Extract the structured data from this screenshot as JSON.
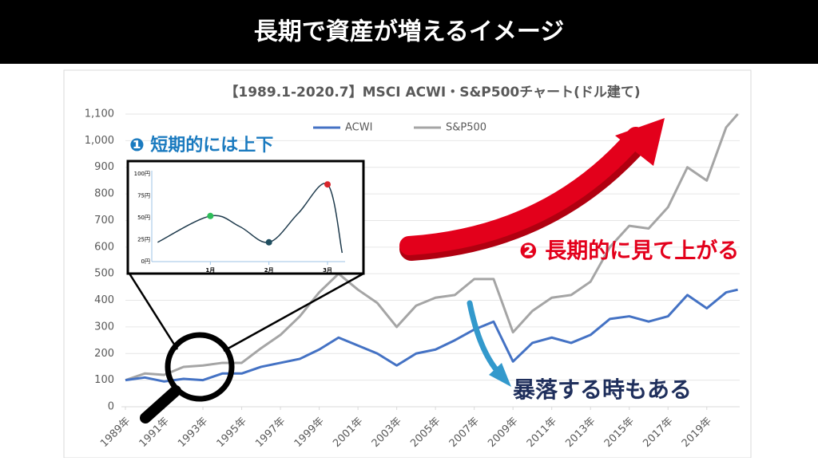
{
  "header": {
    "title": "長期で資産が増えるイメージ"
  },
  "annotations": {
    "short_term": "❶ 短期的には上下",
    "long_term": "❷ 長期的に見て上がる",
    "crash": "暴落する時もある"
  },
  "chart_data": [
    {
      "type": "line",
      "title": "【1989.1-2020.7】MSCI ACWI・S&P500チャート(ドル建て)",
      "x": [
        1989,
        1990,
        1991,
        1992,
        1993,
        1994,
        1995,
        1996,
        1997,
        1998,
        1999,
        2000,
        2001,
        2002,
        2003,
        2004,
        2005,
        2006,
        2007,
        2008,
        2009,
        2010,
        2011,
        2012,
        2013,
        2014,
        2015,
        2016,
        2017,
        2018,
        2019,
        2020,
        2020.6
      ],
      "xlim": [
        1989,
        2020.7
      ],
      "xticks": [
        {
          "value": 1989,
          "label": "1989年"
        },
        {
          "value": 1991,
          "label": "1991年"
        },
        {
          "value": 1993,
          "label": "1993年"
        },
        {
          "value": 1995,
          "label": "1995年"
        },
        {
          "value": 1997,
          "label": "1997年"
        },
        {
          "value": 1999,
          "label": "1999年"
        },
        {
          "value": 2001,
          "label": "2001年"
        },
        {
          "value": 2003,
          "label": "2003年"
        },
        {
          "value": 2005,
          "label": "2005年"
        },
        {
          "value": 2007,
          "label": "2007年"
        },
        {
          "value": 2009,
          "label": "2009年"
        },
        {
          "value": 2011,
          "label": "2011年"
        },
        {
          "value": 2013,
          "label": "2013年"
        },
        {
          "value": 2015,
          "label": "2015年"
        },
        {
          "value": 2017,
          "label": "2017年"
        },
        {
          "value": 2019,
          "label": "2019年"
        }
      ],
      "ylim": [
        0,
        1100
      ],
      "yticks": [
        0,
        100,
        200,
        300,
        400,
        500,
        600,
        700,
        800,
        900,
        {
          "value": 1000,
          "label": "1,000"
        },
        {
          "value": 1100,
          "label": "1,100"
        }
      ],
      "grid": true,
      "series": [
        {
          "name": "ACWI",
          "color": "#4472c4",
          "values": [
            100,
            110,
            95,
            105,
            100,
            125,
            125,
            150,
            165,
            180,
            215,
            260,
            230,
            200,
            155,
            200,
            215,
            250,
            290,
            320,
            170,
            240,
            260,
            240,
            270,
            330,
            340,
            320,
            340,
            420,
            370,
            430,
            440
          ]
        },
        {
          "name": "S&P500",
          "color": "#a5a5a5",
          "values": [
            100,
            125,
            120,
            150,
            155,
            165,
            165,
            220,
            270,
            340,
            430,
            500,
            440,
            390,
            300,
            380,
            410,
            420,
            480,
            480,
            280,
            360,
            410,
            420,
            470,
            600,
            680,
            670,
            750,
            900,
            850,
            1050,
            1100
          ]
        }
      ]
    },
    {
      "type": "line",
      "x": [
        0.1,
        1,
        1.5,
        2,
        2.5,
        3,
        3.25
      ],
      "xlim": [
        0,
        3.3
      ],
      "xticks": [
        {
          "value": 1,
          "label": "1月"
        },
        {
          "value": 2,
          "label": "2月"
        },
        {
          "value": 3,
          "label": "3月"
        }
      ],
      "ylim": [
        0,
        100
      ],
      "yticks": [
        {
          "value": 0,
          "label": "0円"
        },
        {
          "value": 25,
          "label": "25円"
        },
        {
          "value": 50,
          "label": "50円"
        },
        {
          "value": 75,
          "label": "75円"
        },
        {
          "value": 100,
          "label": "100円"
        }
      ],
      "smooth": true,
      "series": [
        {
          "color": "#1f3b4d",
          "values": [
            22,
            52,
            40,
            22,
            55,
            88,
            10
          ]
        }
      ],
      "markers": {
        "x": [
          1,
          2,
          3
        ],
        "values": [
          52,
          22,
          88
        ],
        "colors": [
          "#2ebd59",
          "#1f4e5f",
          "#d9262c"
        ]
      }
    }
  ]
}
